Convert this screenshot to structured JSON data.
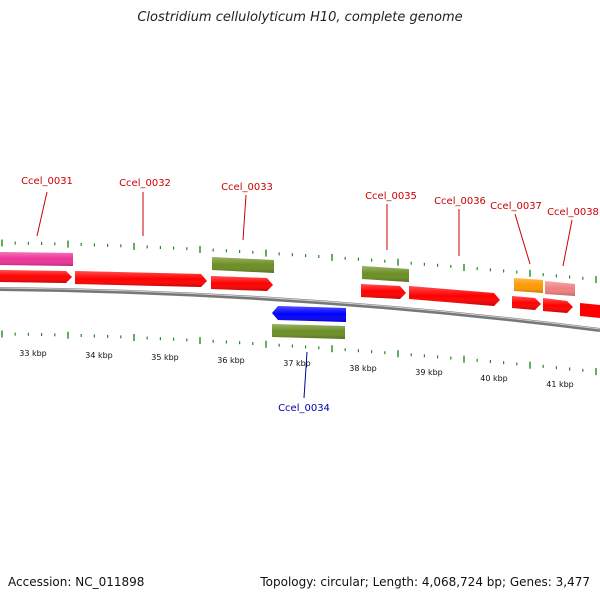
{
  "title": "Clostridium cellulolyticum H10, complete genome",
  "footer": {
    "accession": "Accession: NC_011898",
    "summary": "Topology: circular; Length: 4,068,724 bp; Genes: 3,477"
  },
  "colors": {
    "forward_gene": "#ff0000",
    "reverse_gene": "#0000ff",
    "green_feature": "#6b8e23",
    "pink_feature": "#ee3399",
    "orange_feature": "#ff9900",
    "salmon_feature": "#f08080",
    "tick": "#228b22",
    "backbone": "#777777",
    "label_forward": "#cc0000",
    "label_reverse": "#0000aa"
  },
  "scale_labels": [
    "33 kbp",
    "34 kbp",
    "35 kbp",
    "36 kbp",
    "37 kbp",
    "38 kbp",
    "39 kbp",
    "40 kbp",
    "41 kbp"
  ],
  "gene_labels": [
    "Ccel_0031",
    "Ccel_0032",
    "Ccel_0033",
    "Ccel_0034",
    "Ccel_0035",
    "Ccel_0036",
    "Ccel_0037",
    "Ccel_0038"
  ]
}
